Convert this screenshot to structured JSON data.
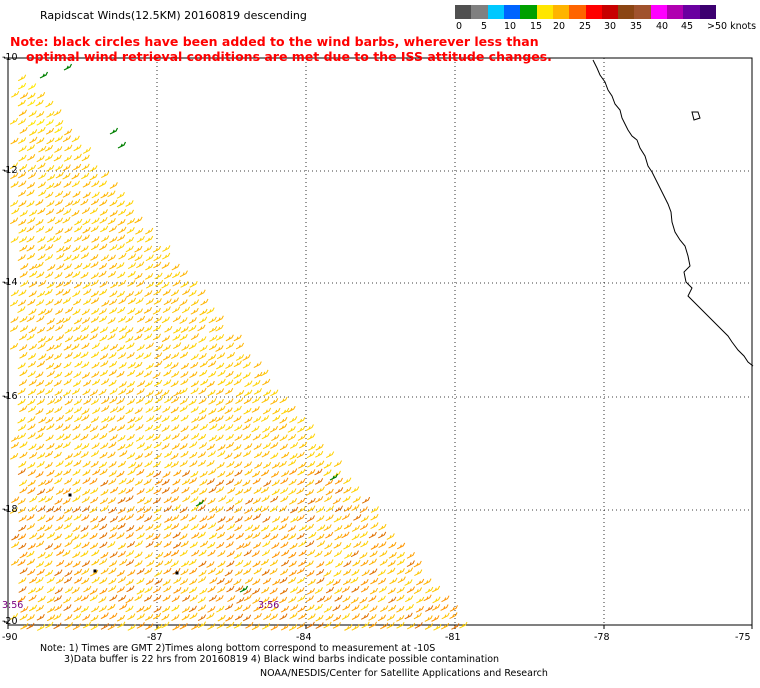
{
  "title": "Rapidscat Winds(12.5KM) 20160819 descending",
  "note": {
    "line1": "Note: black circles have been added to the wind barbs, wherever less than",
    "line2": "optimal wind retrieval conditions are met due to the ISS attitude changes."
  },
  "legend": {
    "unit": ">50 knots",
    "labels": [
      "0",
      "5",
      "10",
      "15",
      "20",
      "25",
      "30",
      "35",
      "40",
      "45"
    ],
    "colors": [
      "#505050",
      "#808080",
      "#00c8ff",
      "#0064ff",
      "#00a000",
      "#ffe600",
      "#ffb400",
      "#ff6400",
      "#ff0000",
      "#c80000",
      "#8b4513",
      "#a0522d",
      "#ff00ff",
      "#b000b0",
      "#6a00a0",
      "#3c0070"
    ]
  },
  "lat_labels": [
    "-10",
    "-12",
    "-14",
    "-16",
    "-18",
    "-20"
  ],
  "lon_labels": [
    "-90",
    "-87",
    "-84",
    "-81",
    "-78",
    "-75"
  ],
  "time_labels": [
    "3:56",
    "3:56"
  ],
  "footer": {
    "line1": "Note: 1) Times are GMT 2)Times along bottom correspond to measurement at -10S",
    "line2": "3)Data buffer is 22 hrs from 20160819 4) Black wind barbs indicate possible contamination",
    "line3": "NOAA/NESDIS/Center for Satellite Applications and Research"
  }
}
